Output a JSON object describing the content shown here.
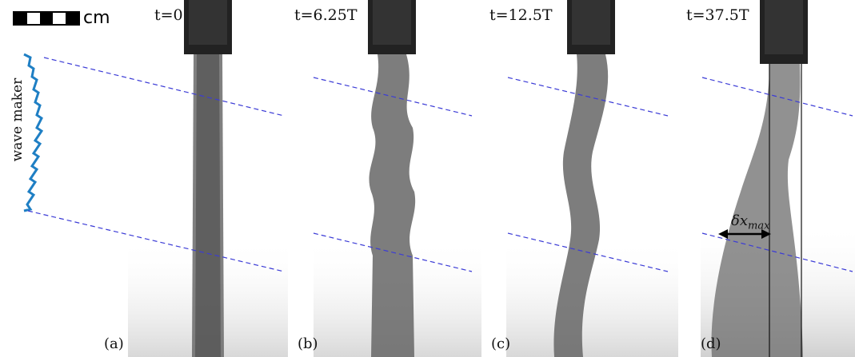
{
  "scale_bar": {
    "unit": "cm"
  },
  "wave_maker": {
    "label": "wave maker"
  },
  "panels": [
    {
      "label": "(a)",
      "time": "t=0"
    },
    {
      "label": "(b)",
      "time": "t=6.25T"
    },
    {
      "label": "(c)",
      "time": "t=12.5T"
    },
    {
      "label": "(d)",
      "time": "t=37.5T"
    }
  ],
  "annotation": {
    "symbol": "δx",
    "subscript": "max"
  },
  "colors": {
    "dashed_line": "#3b3bd6",
    "wave_maker": "#1f7fc4",
    "plume": "#5a5a5a"
  }
}
